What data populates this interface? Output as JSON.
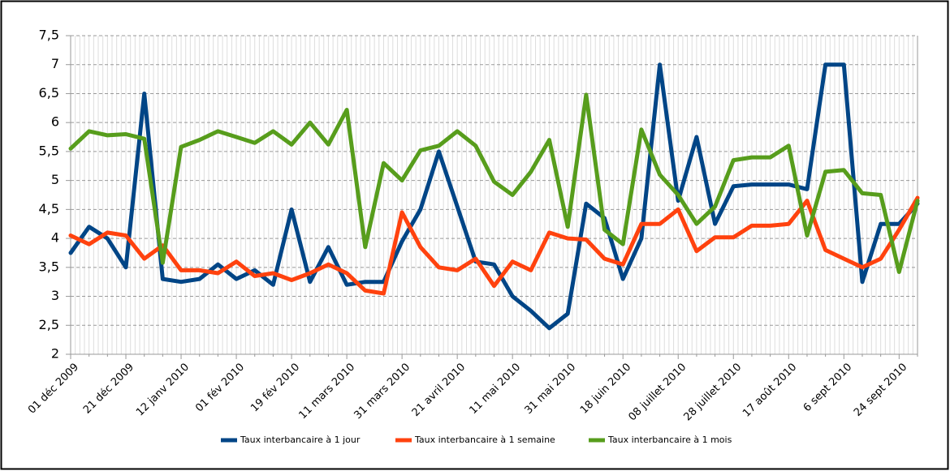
{
  "chart_data": {
    "type": "line",
    "categories": [
      "01 déc 2009",
      null,
      null,
      "21 déc 2009",
      null,
      null,
      "12 janv 2010",
      null,
      null,
      "01 fév 2010",
      null,
      null,
      "19 fév 2010",
      null,
      null,
      "11 mars 2010",
      null,
      null,
      "31 mars 2010",
      null,
      null,
      "21 avril 2010",
      null,
      null,
      "11 mai 2010",
      null,
      null,
      "31 mai 2010",
      null,
      null,
      "18 juin 2010",
      null,
      null,
      "08 juillet 2010",
      null,
      null,
      "28 juillet 2010",
      null,
      null,
      "17 août 2010",
      null,
      null,
      "6 sept 2010",
      null,
      null,
      "24 sept 2010",
      null
    ],
    "series": [
      {
        "name": "Taux interbancaire à 1 jour",
        "color": "#004586",
        "values": [
          3.75,
          4.2,
          4.0,
          3.5,
          6.5,
          3.3,
          3.25,
          3.3,
          3.55,
          3.3,
          3.45,
          3.2,
          4.5,
          3.25,
          3.85,
          3.2,
          3.25,
          3.25,
          3.95,
          4.5,
          5.5,
          4.55,
          3.6,
          3.55,
          3.0,
          2.75,
          2.45,
          2.7,
          4.6,
          4.35,
          3.3,
          4.0,
          7.0,
          4.65,
          5.75,
          4.25,
          4.9,
          4.93,
          4.93,
          4.93,
          4.85,
          7.0,
          7.0,
          3.25,
          4.25,
          4.25,
          4.6
        ]
      },
      {
        "name": "Taux interbancaire à 1 semaine",
        "color": "#ff420e",
        "values": [
          4.05,
          3.9,
          4.1,
          4.05,
          3.65,
          3.88,
          3.45,
          3.45,
          3.4,
          3.6,
          3.35,
          3.4,
          3.28,
          3.4,
          3.55,
          3.4,
          3.1,
          3.05,
          4.45,
          3.85,
          3.5,
          3.45,
          3.65,
          3.18,
          3.6,
          3.45,
          4.1,
          4.0,
          3.98,
          3.65,
          3.55,
          4.25,
          4.25,
          4.5,
          3.78,
          4.02,
          4.02,
          4.22,
          4.22,
          4.25,
          4.65,
          3.8,
          3.65,
          3.5,
          3.65,
          4.15,
          4.7
        ]
      },
      {
        "name": "Taux interbancaire à 1 mois",
        "color": "#579d1c",
        "values": [
          5.55,
          5.85,
          5.78,
          5.8,
          5.72,
          3.58,
          5.58,
          5.7,
          5.85,
          5.75,
          5.65,
          5.85,
          5.62,
          6.0,
          5.62,
          6.22,
          3.85,
          5.3,
          5.0,
          5.52,
          5.6,
          5.85,
          5.6,
          4.98,
          4.75,
          5.15,
          5.7,
          4.2,
          6.48,
          4.15,
          3.9,
          5.88,
          5.1,
          4.75,
          4.25,
          4.55,
          5.35,
          5.4,
          5.4,
          5.6,
          4.05,
          5.15,
          5.18,
          4.78,
          4.75,
          3.42,
          4.65
        ]
      }
    ],
    "ylim": [
      2,
      7.5
    ],
    "yticks": [
      2,
      {
        "value": 2.5,
        "label": "2,5"
      },
      3,
      {
        "value": 3.5,
        "label": "3,5"
      },
      4,
      {
        "value": 4.5,
        "label": "4,5"
      },
      5,
      {
        "value": 5.5,
        "label": "5,5"
      },
      6,
      {
        "value": 6.5,
        "label": "6,5"
      },
      7,
      {
        "value": 7.5,
        "label": "7,5"
      }
    ],
    "grid": true,
    "legend": "bottom"
  }
}
